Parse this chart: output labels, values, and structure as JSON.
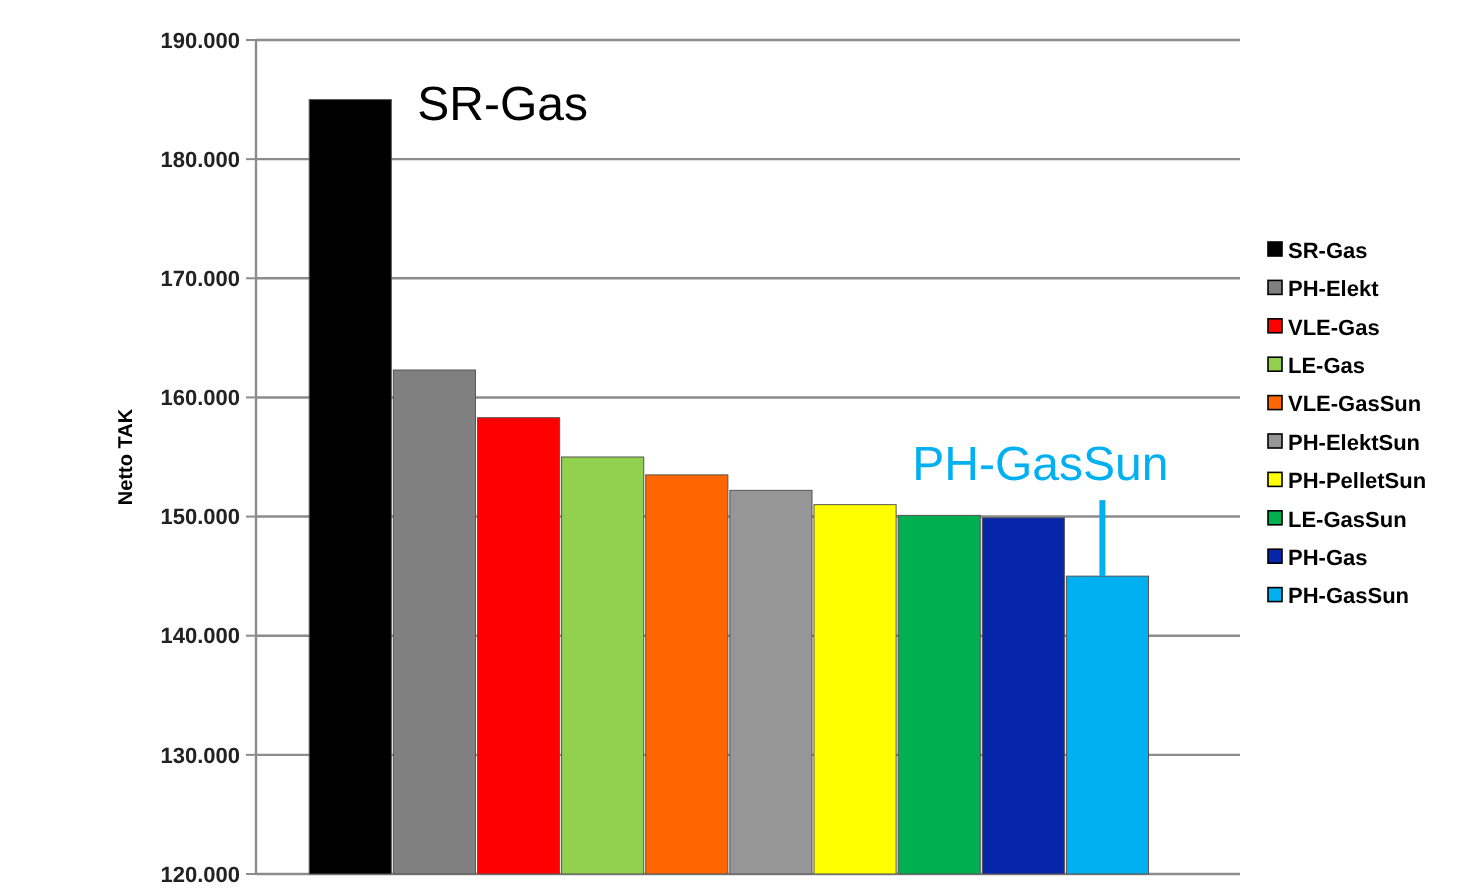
{
  "chart_data": {
    "type": "bar",
    "ylabel": "Netto TAK",
    "categories": [
      null
    ],
    "series": [
      {
        "name": "SR-Gas",
        "color": "#000000",
        "values": [
          185000
        ]
      },
      {
        "name": "PH-Elekt",
        "color": "#808080",
        "values": [
          162300
        ]
      },
      {
        "name": "VLE-Gas",
        "color": "#ff0000",
        "values": [
          158300
        ]
      },
      {
        "name": "LE-Gas",
        "color": "#92d050",
        "values": [
          155000
        ]
      },
      {
        "name": "VLE-GasSun",
        "color": "#ff6600",
        "values": [
          153500
        ]
      },
      {
        "name": "PH-ElektSun",
        "color": "#969696",
        "values": [
          152200
        ]
      },
      {
        "name": "PH-PelletSun",
        "color": "#ffff00",
        "values": [
          151000
        ]
      },
      {
        "name": "LE-GasSun",
        "color": "#00b050",
        "values": [
          150100
        ]
      },
      {
        "name": "PH-Gas",
        "color": "#0625a8",
        "values": [
          149900
        ]
      },
      {
        "name": "PH-GasSun",
        "color": "#00b0f0",
        "values": [
          145000
        ]
      }
    ],
    "ylim": [
      120000,
      190000
    ],
    "yticks": [
      {
        "value": 120000,
        "label": "120.000"
      },
      {
        "value": 130000,
        "label": "130.000"
      },
      {
        "value": 140000,
        "label": "140.000"
      },
      {
        "value": 150000,
        "label": "150.000"
      },
      {
        "value": 160000,
        "label": "160.000"
      },
      {
        "value": 170000,
        "label": "170.000"
      },
      {
        "value": 180000,
        "label": "180.000"
      },
      {
        "value": 190000,
        "label": "190.000"
      }
    ],
    "annotations": [
      "SR-Gas",
      "PH-GasSun"
    ],
    "grid": "y",
    "legend": "right"
  }
}
